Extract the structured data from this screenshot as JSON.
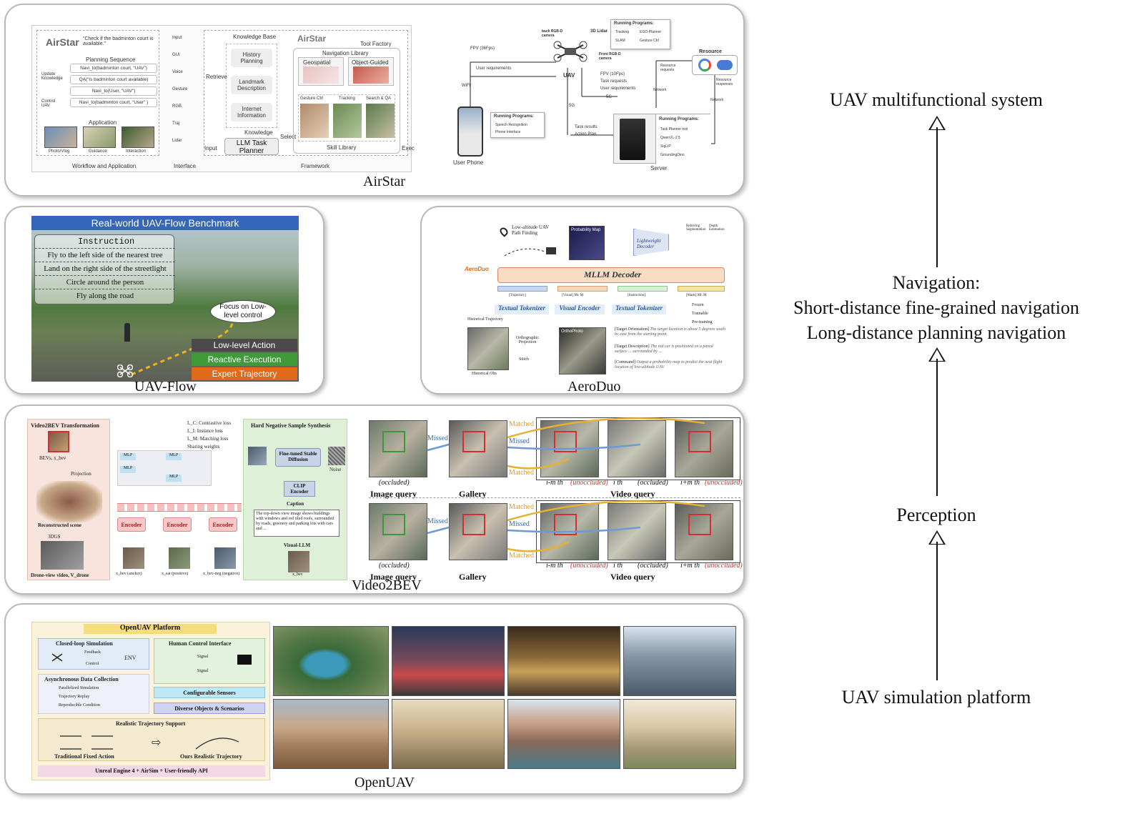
{
  "panels": {
    "airstar": {
      "caption": "AirStar",
      "title": "AirStar",
      "quote": "“Check if the badminton court is available.”",
      "planning_title": "Planning Sequence",
      "planning_steps": [
        "Navi_to(badminton court, “UAV”)",
        "QA(“Is badminton court available)",
        "Navi_to(User, “UAV”)",
        "Navi_to(badminton court, “User” )"
      ],
      "update_label": "Update Knowledge",
      "control_label": "Control UAV",
      "application_title": "Application",
      "apps": [
        "Photo/Vlog",
        "Guidance",
        "Interaction"
      ],
      "interface_items": [
        "Input",
        "GUI",
        "Voice",
        "Gesture",
        "RGB",
        "Traj",
        "Lidar"
      ],
      "kb_title": "Knowledge Base",
      "kb_items": [
        "History Planning",
        "Landmark Description",
        "Internet Information"
      ],
      "retrieve": "Retrieve",
      "knowledge": "Knowledge",
      "input2": "Input",
      "select": "Select",
      "exec": "Exec",
      "planner": "LLM Task Planner",
      "tool_factory": "Tool Factory",
      "nav_lib": "Navigation Library",
      "nav_items": [
        "Geospatial",
        "Object-Guided"
      ],
      "skill_items": [
        "Gesture Ctrl",
        "Tracking",
        "Search & QA"
      ],
      "skill_lib": "Skill Library",
      "footers": [
        "Workflow and Application",
        "Interface",
        "Framework"
      ],
      "sys": {
        "fpv36": "FPV (36Fps)",
        "user_req": "User requirements",
        "wifi": "WiFi",
        "uav": "UAV",
        "back_cam": "back RGB-D camera",
        "lidar": "3D Lidar",
        "front_cam": "Front RGB-D camera",
        "running1_title": "Running Programs:",
        "running1": [
          "Tracking",
          "EGO-Planner",
          "SLAM",
          "Gesture Ctrl"
        ],
        "fpv10": "FPV (10Fps)",
        "task_req": "Task requests",
        "user_req2": "User requirements",
        "g5": "5G",
        "g5b": "5G",
        "task_results": "Task results",
        "action_plan": "Action Plan",
        "phone": "User Phone",
        "running2_title": "Running Programs:",
        "running2": [
          "Speech Recognition",
          "Phone Interface"
        ],
        "resource": "Resource",
        "resource_req": "Resource requests",
        "resource_resp": "Resource responses",
        "network1": "Network",
        "network2": "Network",
        "running3_title": "Running Programs:",
        "running3": [
          "Task Planner tool",
          "QwenVL-2.5",
          "SigLIP",
          "GroundingDino"
        ],
        "server": "Server"
      }
    },
    "uavflow": {
      "caption": "UAV-Flow",
      "banner": "Real-world UAV-Flow Benchmark",
      "instruction_title": "Instruction",
      "instructions": [
        "Fly to the left side of the nearest tree",
        "Land on the right side of the streetlight",
        "Circle around the person",
        "Fly along the road"
      ],
      "bubble": "Focus on Low-level control",
      "tags": [
        "Low-level Action",
        "Reactive Execution",
        "Expert Trajectory"
      ],
      "tag_colors": [
        "#4a4a4a",
        "#3f9a3a",
        "#e06a1a"
      ]
    },
    "aeroduo": {
      "caption": "AeroDuo",
      "path_finding": "Low-altitude UAV Path Finding",
      "prob_map": "Probability Map",
      "decoder": "Lightweight Decoder",
      "seg": "Referring Segmentation",
      "depth": "Depth Estimation",
      "mllm": "MLLM Decoder",
      "tokens": [
        "[Trajectory]",
        "[Visual] Mr. M",
        "[Instruction]",
        "[Mask] Mr. M"
      ],
      "textual1": "Textual Tokenizer",
      "visual": "Visual Encoder",
      "textual2": "Textual Tokenizer",
      "legend": [
        "Frozen",
        "Trainable",
        "Pre-training"
      ],
      "hist_traj": "Historical Trajectory",
      "ortho_proj": "Orthographic Projection",
      "stitch": "Stitch",
      "hist_obs": "Historical Obs",
      "ortho_title": "OrthoPhoto",
      "target_orientation_key": "[Target Orientation]",
      "target_orientation": "The target location is about 5 degrees south by east from the starting point.",
      "target_description_key": "[Target Description]",
      "target_description": "The red car is positioned on a paved surface ... surrounded by ...",
      "command_key": "[Command]",
      "command": "Output a probability map to predict the next flight location of low-altitude UAV.",
      "logo": "AeroDuo"
    },
    "video2bev": {
      "caption": "Video2BEV",
      "transform_title": "Video2BEV Transformation",
      "bev_label": "BEVs, x_bev",
      "projection": "Projection",
      "recon": "Reconstructed scene",
      "gs": "3DGS",
      "drone_video": "Drone-view video, V_drone",
      "losses": [
        "L_C: Contrastive loss",
        "L_I: Instance loss",
        "L_M: Matching loss",
        "Sharing weights"
      ],
      "encoder": "Encoder",
      "mlp": "MLP",
      "samples": [
        "x_bev (anchor)",
        "x_sat (positive)",
        "x_bev-neg (negative)"
      ],
      "hn_title": "Hard Negative Sample Synthesis",
      "sd": "Fine-tuned Stable Diffusion",
      "noise": "Noise",
      "clip": "CLIP Encoder",
      "caption_title": "Caption",
      "caption_text": "The top-down view image shows buildings with windows and red tiled roofs, surrounded by roads, greenery and parking lots with cars and ...",
      "vllm": "Visual-LLM",
      "x_bev": "x_bev",
      "retrieval": {
        "matched": "Matched",
        "missed": "Missed",
        "image_query": "Image query",
        "gallery": "Gallery",
        "video_query": "Video query",
        "occluded": "(occluded)",
        "frames": [
          "i-m th",
          "i th",
          "i+m th"
        ],
        "frame_states": [
          "(unoccluded)",
          "(occluded)",
          "(unoccluded)"
        ]
      }
    },
    "openuav": {
      "caption": "OpenUAV",
      "platform_title": "OpenUAV Platform",
      "closed_loop": "Closed-loop Simulation",
      "feedback": "Feedback",
      "control": "Control",
      "env": "ENV",
      "hci": "Human Control Interface",
      "signal1": "Signal",
      "signal2": "Signal",
      "async": "Asynchronous Data Collection",
      "async_items": [
        "Parallelized Simulation",
        "Trajectory Replay",
        "Reproducible Condition"
      ],
      "sensors": "Configurable Sensors",
      "diverse": "Diverse Objects & Scenarios",
      "realistic": "Realistic Trajectory Support",
      "trad": "Traditional Fixed Action",
      "ours": "Ours Realistic Trajectory",
      "engine": "Unreal Engine 4 + AirSim + User-friendly API"
    }
  },
  "hierarchy": {
    "top": "UAV multifunctional system",
    "navigation": [
      "Navigation:",
      "Short-distance fine-grained navigation",
      "Long-distance planning navigation"
    ],
    "perception": "Perception",
    "bottom": "UAV simulation platform"
  }
}
